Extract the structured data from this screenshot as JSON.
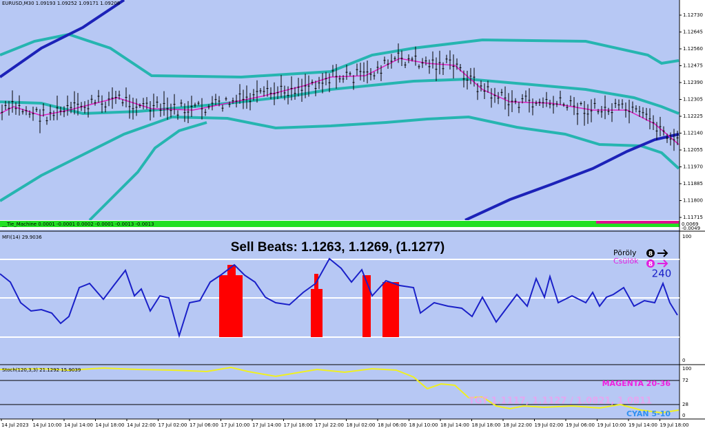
{
  "header": {
    "symbol": "EURUSD,M30 1.09193 1.09252 1.09171 1.09208"
  },
  "price_axis": [
    "1.12730",
    "1.12645",
    "1.12560",
    "1.12475",
    "1.12390",
    "1.12305",
    "1.12225",
    "1.12140",
    "1.12055",
    "1.11970",
    "1.11885",
    "1.11800",
    "1.11715"
  ],
  "tie_machine": {
    "label": "__Tie_Machine 0.0001 -0.0001 0.0002 -0.0001 -0.0013 -0.0013",
    "axis": [
      "0.0069",
      "-0.0049"
    ]
  },
  "mfi": {
    "label": "MFI(14) 29.9036",
    "axis": [
      "100",
      "0"
    ],
    "annotation": "Sell Beats: 1.1263, 1.1269, (1.1277)",
    "legend": [
      {
        "marker": "8",
        "name": "Pöröly"
      },
      {
        "marker": "8",
        "name": "Csülök"
      }
    ],
    "period": "240"
  },
  "stoch": {
    "label": "Stoch(120,3,3) 21.1292 15.9039",
    "axis": [
      "100",
      "72",
      "28",
      "0"
    ],
    "notes": [
      "MAGENTA 20-36",
      "TGT 1.1117, 1.1127 / 1.0821, 1.0811",
      "CYAN 5-10"
    ]
  },
  "time_axis": [
    "14 Jul 2023",
    "14 Jul 10:00",
    "14 Jul 14:00",
    "14 Jul 18:00",
    "14 Jul 22:00",
    "17 Jul 02:00",
    "17 Jul 06:00",
    "17 Jul 10:00",
    "17 Jul 14:00",
    "17 Jul 18:00",
    "17 Jul 22:00",
    "18 Jul 02:00",
    "18 Jul 06:00",
    "18 Jul 10:00",
    "18 Jul 14:00",
    "18 Jul 18:00",
    "18 Jul 22:00",
    "19 Jul 02:00",
    "19 Jul 06:00",
    "19 Jul 10:00",
    "19 Jul 14:00",
    "19 Jul 18:00"
  ]
}
